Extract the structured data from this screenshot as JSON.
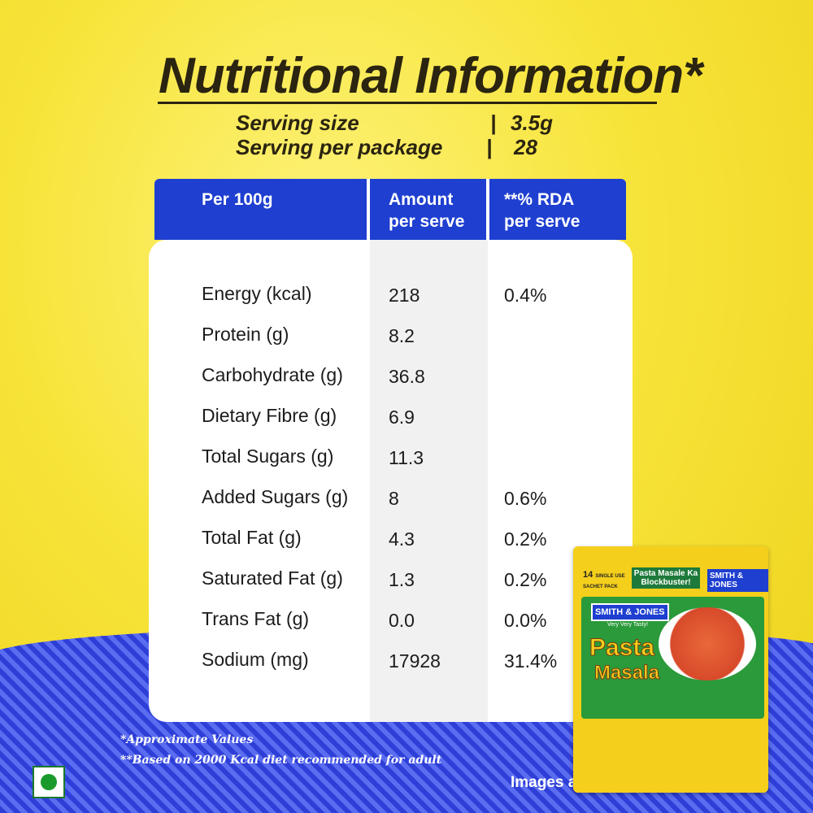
{
  "header": {
    "title": "Nutritional Information*",
    "serving": [
      {
        "label": "Serving size",
        "value": "3.5g"
      },
      {
        "label": "Serving per package",
        "value": "28"
      }
    ]
  },
  "table": {
    "columns": [
      "Per 100g",
      "Amount per serve",
      "**% RDA per serve"
    ],
    "rows": [
      {
        "name": "Energy (kcal)",
        "amount": "218",
        "rda": "0.4%"
      },
      {
        "name": "Protein (g)",
        "amount": "8.2"
      },
      {
        "name": "Carbohydrate (g)",
        "amount": "36.8"
      },
      {
        "name": "Dietary Fibre (g)",
        "amount": "6.9"
      },
      {
        "name": "Total Sugars (g)",
        "amount": "11.3"
      },
      {
        "name": "Added Sugars (g)",
        "amount": "8",
        "rda": "0.6%"
      },
      {
        "name": "Total Fat (g)",
        "amount": "4.3",
        "rda": "0.2%"
      },
      {
        "name": "Saturated Fat (g)",
        "amount": "1.3",
        "rda": "0.2%"
      },
      {
        "name": "Trans Fat (g)",
        "amount": "0.0",
        "rda": "0.0%"
      },
      {
        "name": "Sodium (mg)",
        "amount": "17928",
        "rda": "31.4%"
      }
    ]
  },
  "footnotes": [
    "*Approximate Values",
    "**Based on 2000 Kcal diet recommended for adult"
  ],
  "package": {
    "count": "14",
    "pack": "SINGLE USE SACHET PACK",
    "tagline": "Pasta Masale Ka Blockbuster!",
    "brand": "SMITH & JONES",
    "slogan": "Very Very Tasty!",
    "name1": "Pasta",
    "name2": "Masala"
  },
  "disclaimer": "Images are for illustration purpose"
}
